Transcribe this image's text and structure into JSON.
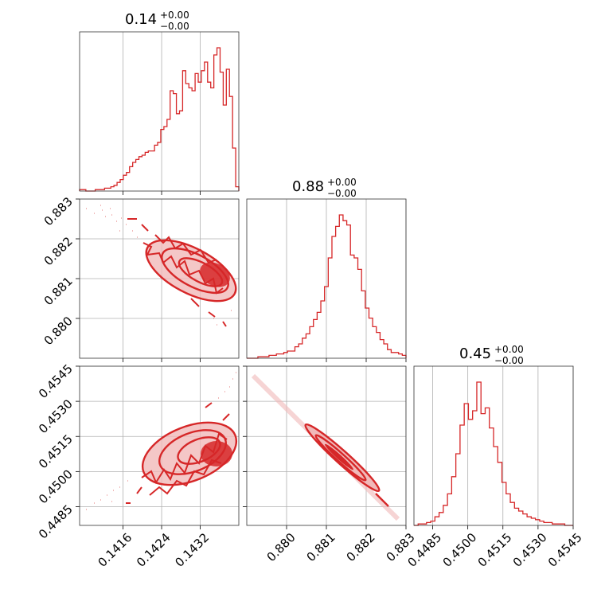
{
  "chart_data": {
    "type": "corner",
    "color": "#d62728",
    "grid": true,
    "parameters": [
      {
        "title_value": "0.14",
        "title_plus": "+0.00",
        "title_minus": "−0.00",
        "range": [
          0.1407,
          0.144
        ],
        "ticks": [
          0.1416,
          0.1424,
          0.1432
        ],
        "tick_labels": [
          "0.1416",
          "0.1424",
          "0.1432"
        ]
      },
      {
        "title_value": "0.88",
        "title_plus": "+0.00",
        "title_minus": "−0.00",
        "range": [
          0.879,
          0.883
        ],
        "ticks": [
          0.88,
          0.881,
          0.882,
          0.883
        ],
        "tick_labels": [
          "0.880",
          "0.881",
          "0.882",
          "0.883"
        ]
      },
      {
        "title_value": "0.45",
        "title_plus": "+0.00",
        "title_minus": "−0.00",
        "range": [
          0.4477,
          0.4545
        ],
        "ticks": [
          0.4485,
          0.45,
          0.4515,
          0.453,
          0.4545
        ],
        "tick_labels": [
          "0.4485",
          "0.4500",
          "0.4515",
          "0.4530",
          "0.4545"
        ]
      }
    ],
    "histograms": [
      [
        1,
        1,
        0,
        0,
        0,
        1,
        1,
        1,
        2,
        2,
        3,
        4,
        6,
        8,
        11,
        13,
        17,
        20,
        22,
        24,
        25,
        27,
        28,
        28,
        32,
        34,
        43,
        45,
        50,
        70,
        68,
        54,
        56,
        84,
        75,
        72,
        70,
        82,
        76,
        84,
        90,
        76,
        72,
        95,
        100,
        83,
        60,
        85,
        66,
        30,
        3
      ],
      [
        0,
        0,
        0,
        1,
        1,
        1,
        2,
        2,
        3,
        3,
        4,
        5,
        5,
        8,
        10,
        14,
        17,
        22,
        27,
        32,
        40,
        50,
        70,
        85,
        92,
        100,
        96,
        93,
        72,
        70,
        62,
        47,
        35,
        28,
        22,
        18,
        13,
        10,
        6,
        4,
        4,
        3,
        2
      ],
      [
        0,
        1,
        1,
        2,
        3,
        6,
        9,
        14,
        22,
        34,
        50,
        70,
        85,
        74,
        80,
        100,
        78,
        82,
        68,
        55,
        44,
        30,
        22,
        16,
        12,
        10,
        8,
        6,
        5,
        4,
        3,
        2,
        2,
        1,
        1,
        1,
        0,
        0
      ]
    ]
  }
}
